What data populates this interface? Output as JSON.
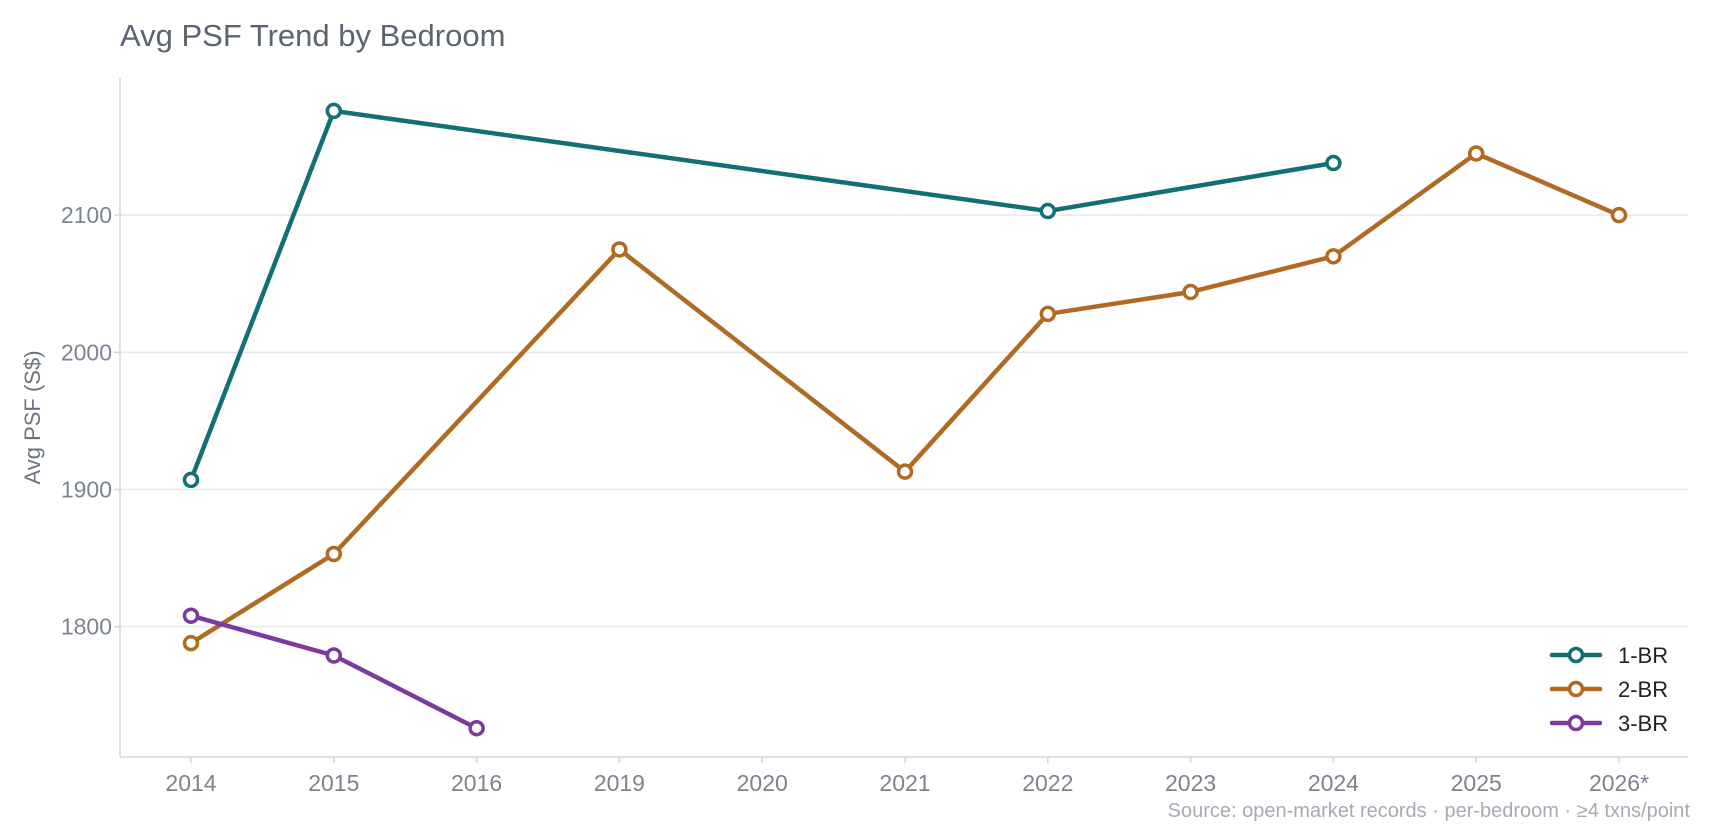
{
  "chart_data": {
    "type": "line",
    "title": "Avg PSF Trend by Bedroom",
    "ylabel": "Avg PSF (S$)",
    "xlabel": "",
    "categories": [
      "2014",
      "2015",
      "2016",
      "2019",
      "2020",
      "2021",
      "2022",
      "2023",
      "2024",
      "2025",
      "2026*"
    ],
    "ylim": [
      1705,
      2200
    ],
    "yticks": [
      1800,
      1900,
      2000,
      2100
    ],
    "grid": "horizontal",
    "legend_position": "bottom-right",
    "series": [
      {
        "name": "1-BR",
        "color": "#136f76",
        "values": [
          1907,
          2176,
          null,
          null,
          null,
          null,
          2103,
          null,
          2138,
          null,
          null
        ]
      },
      {
        "name": "2-BR",
        "color": "#b06a22",
        "values": [
          1788,
          1853,
          null,
          2075,
          null,
          1913,
          2028,
          2044,
          2070,
          2145,
          2100
        ]
      },
      {
        "name": "3-BR",
        "color": "#7b3b9c",
        "values": [
          1808,
          1779,
          1726,
          null,
          null,
          null,
          null,
          null,
          null,
          null,
          null
        ]
      }
    ],
    "source_note": "Source: open-market records · per-bedroom · ≥4 txns/point"
  }
}
